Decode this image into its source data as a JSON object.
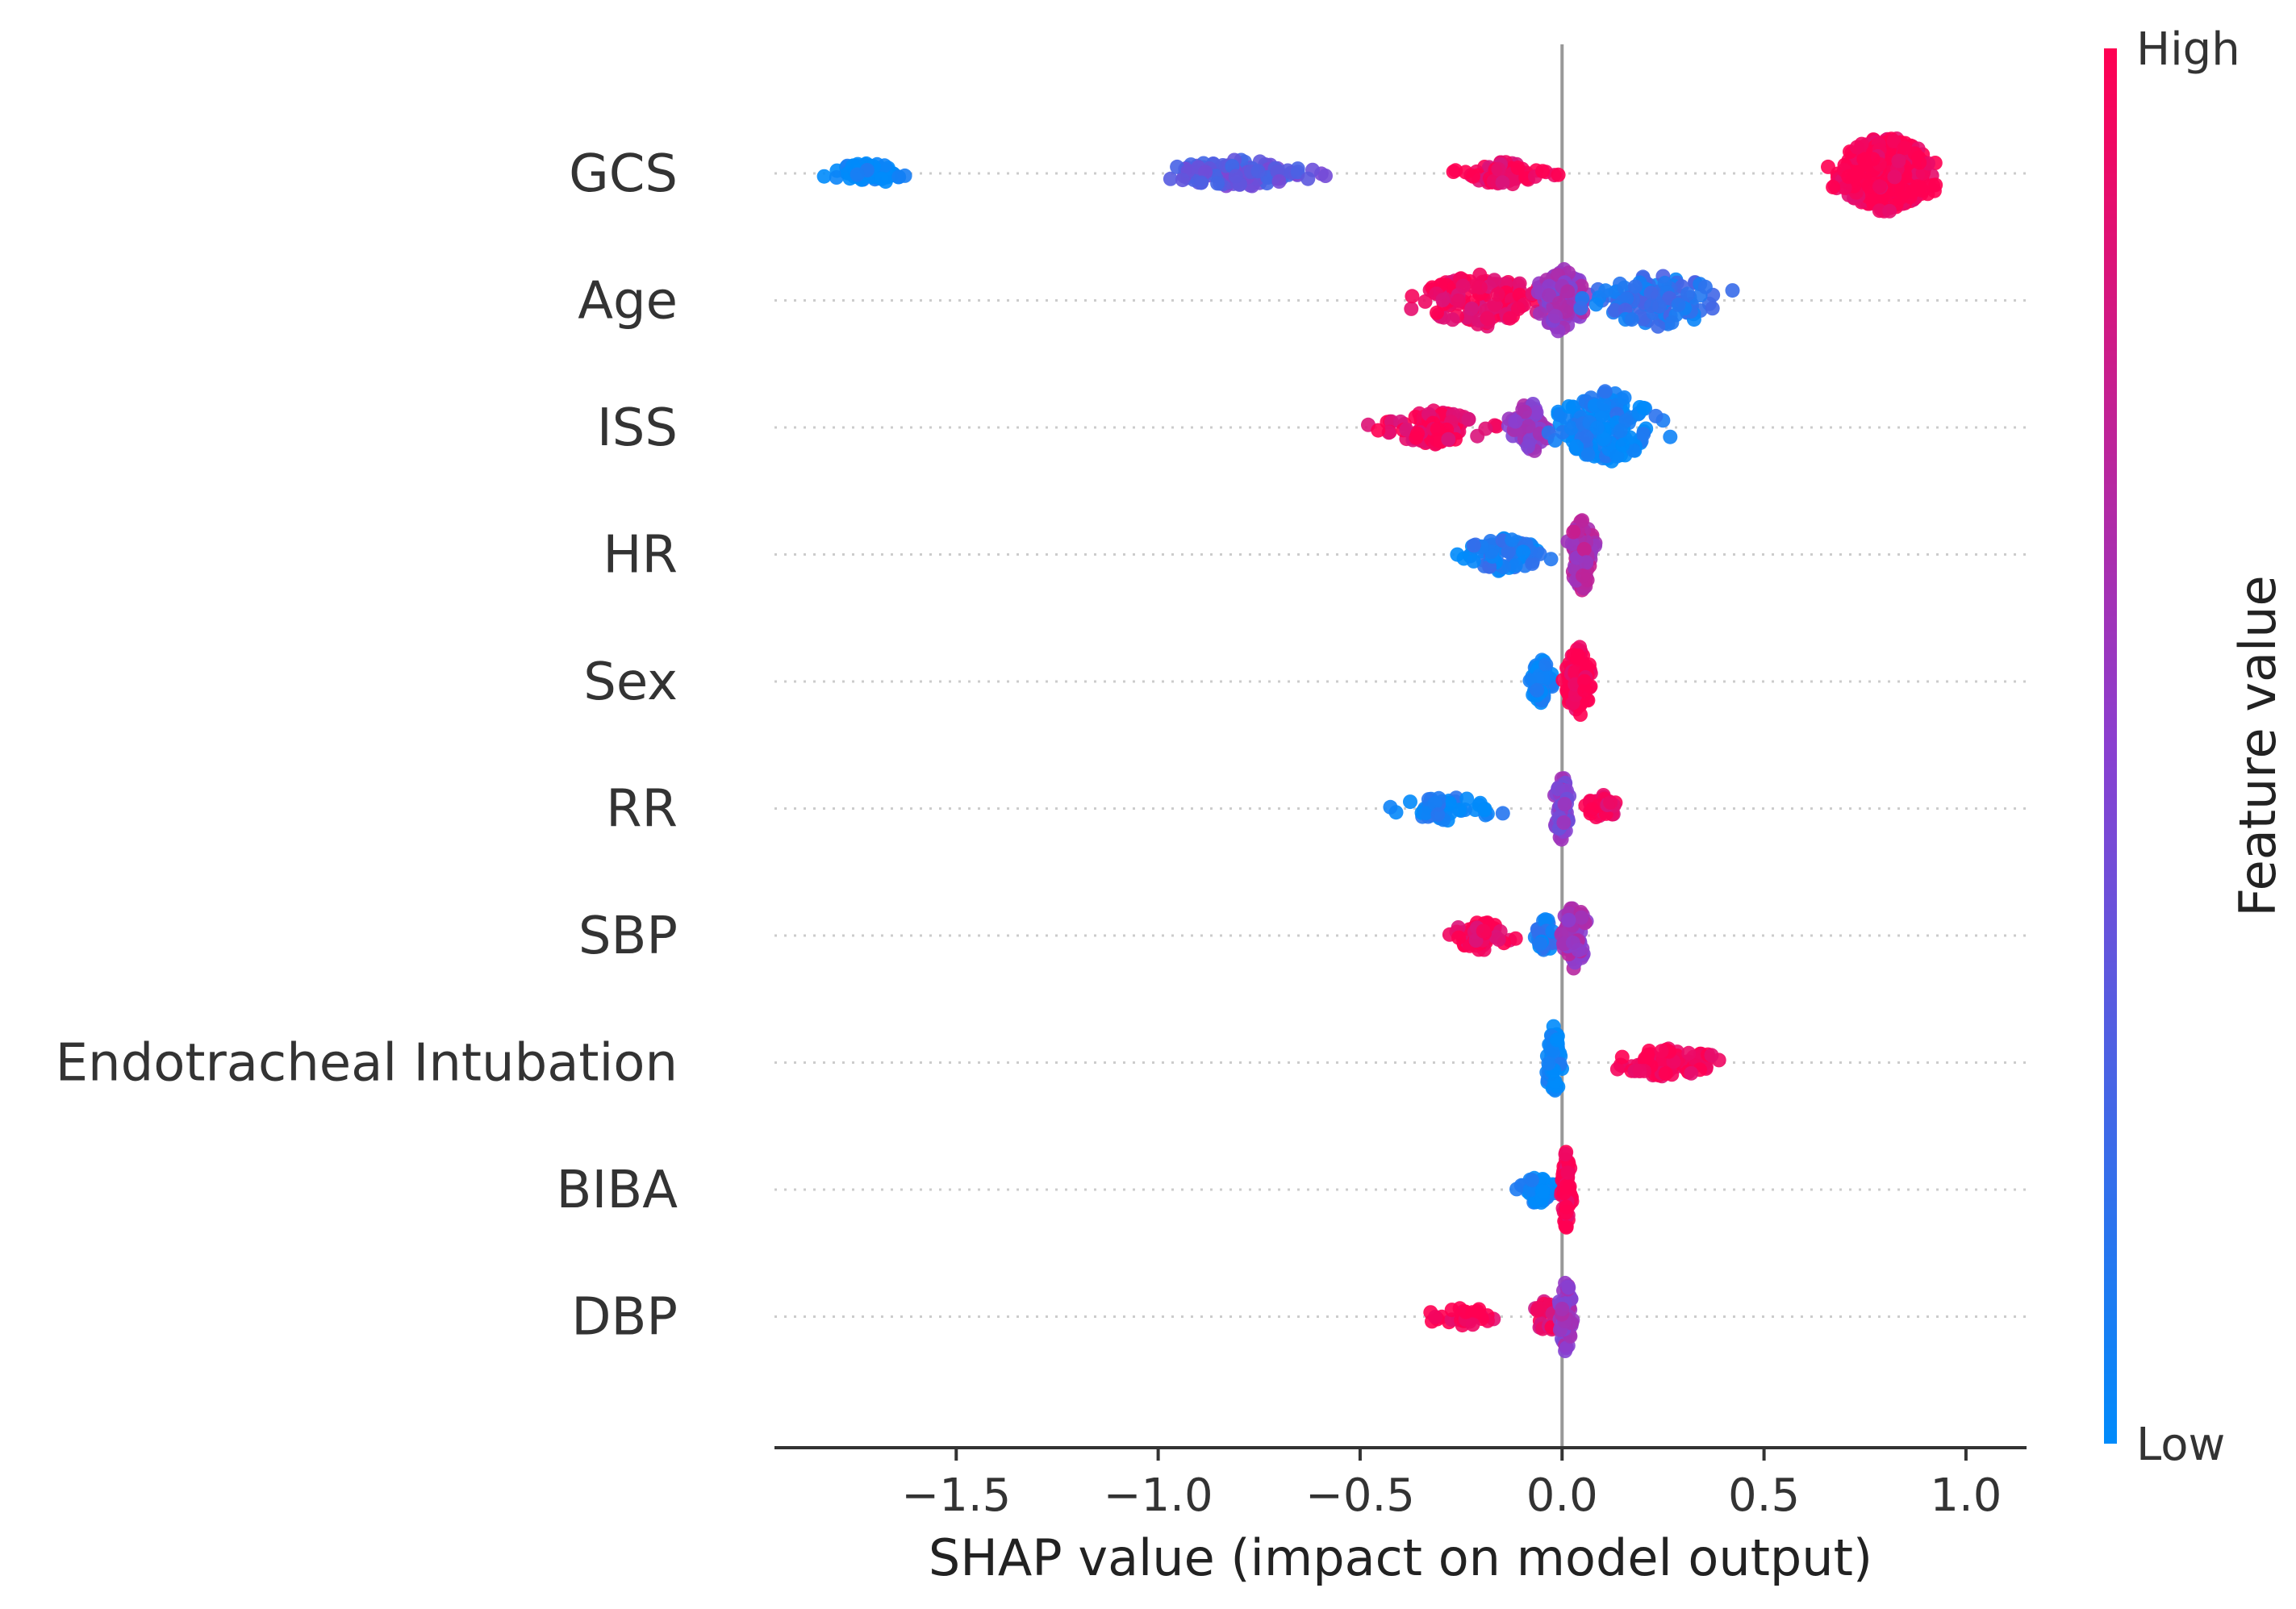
{
  "chart_data": {
    "type": "scatter",
    "subtype": "shap-beeswarm",
    "xlabel": "SHAP value (impact on model output)",
    "xlim": [
      -1.95,
      1.15
    ],
    "xticks": [
      -1.5,
      -1.0,
      -0.5,
      0.0,
      0.5,
      1.0
    ],
    "xtick_labels": [
      "−1.5",
      "−1.0",
      "−0.5",
      "0.0",
      "0.5",
      "1.0"
    ],
    "colorbar": {
      "label": "Feature value",
      "high_label": "High",
      "low_label": "Low",
      "high_color": "#ff0052",
      "low_color": "#008bfb"
    },
    "features": [
      {
        "name": "GCS",
        "clusters": [
          {
            "center": -1.72,
            "spread": 0.16,
            "height": 0.22,
            "count": 70,
            "value": 0.0
          },
          {
            "center": -0.8,
            "spread": 0.3,
            "height": 0.28,
            "count": 120,
            "value": 0.35
          },
          {
            "center": -0.14,
            "spread": 0.17,
            "height": 0.24,
            "count": 70,
            "value": 0.95
          },
          {
            "center": 0.8,
            "spread": 0.2,
            "height": 0.8,
            "count": 320,
            "value": 1.0
          }
        ]
      },
      {
        "name": "Age",
        "clusters": [
          {
            "center": -0.2,
            "spread": 0.24,
            "height": 0.55,
            "count": 140,
            "value": 0.95
          },
          {
            "center": 0.0,
            "spread": 0.1,
            "height": 0.7,
            "count": 90,
            "value": 0.55
          },
          {
            "center": 0.24,
            "spread": 0.26,
            "height": 0.55,
            "count": 130,
            "value": 0.15
          }
        ]
      },
      {
        "name": "ISS",
        "clusters": [
          {
            "center": -0.32,
            "spread": 0.2,
            "height": 0.35,
            "count": 90,
            "value": 0.95
          },
          {
            "center": -0.08,
            "spread": 0.08,
            "height": 0.55,
            "count": 60,
            "value": 0.55
          },
          {
            "center": 0.11,
            "spread": 0.2,
            "height": 0.75,
            "count": 150,
            "value": 0.05
          }
        ]
      },
      {
        "name": "HR",
        "clusters": [
          {
            "center": -0.15,
            "spread": 0.15,
            "height": 0.35,
            "count": 80,
            "value": 0.1
          },
          {
            "center": 0.05,
            "spread": 0.05,
            "height": 0.75,
            "count": 90,
            "value": 0.65
          }
        ]
      },
      {
        "name": "Sex",
        "clusters": [
          {
            "center": -0.05,
            "spread": 0.05,
            "height": 0.45,
            "count": 50,
            "value": 0.0
          },
          {
            "center": 0.04,
            "spread": 0.05,
            "height": 0.75,
            "count": 100,
            "value": 1.0
          }
        ]
      },
      {
        "name": "RR",
        "clusters": [
          {
            "center": -0.28,
            "spread": 0.2,
            "height": 0.25,
            "count": 50,
            "value": 0.05
          },
          {
            "center": 0.0,
            "spread": 0.03,
            "height": 0.7,
            "count": 70,
            "value": 0.5
          },
          {
            "center": 0.1,
            "spread": 0.06,
            "height": 0.28,
            "count": 40,
            "value": 0.9
          }
        ]
      },
      {
        "name": "SBP",
        "clusters": [
          {
            "center": -0.2,
            "spread": 0.12,
            "height": 0.3,
            "count": 55,
            "value": 0.95
          },
          {
            "center": -0.04,
            "spread": 0.04,
            "height": 0.35,
            "count": 25,
            "value": 0.1
          },
          {
            "center": 0.03,
            "spread": 0.05,
            "height": 0.7,
            "count": 80,
            "value": 0.6
          }
        ]
      },
      {
        "name": "Endotracheal Intubation",
        "clusters": [
          {
            "center": -0.02,
            "spread": 0.03,
            "height": 0.75,
            "count": 60,
            "value": 0.0
          },
          {
            "center": 0.26,
            "spread": 0.2,
            "height": 0.3,
            "count": 80,
            "value": 1.0
          }
        ]
      },
      {
        "name": "BIBA",
        "clusters": [
          {
            "center": -0.06,
            "spread": 0.06,
            "height": 0.3,
            "count": 40,
            "value": 0.0
          },
          {
            "center": 0.01,
            "spread": 0.02,
            "height": 0.8,
            "count": 70,
            "value": 1.0
          }
        ]
      },
      {
        "name": "DBP",
        "clusters": [
          {
            "center": -0.24,
            "spread": 0.16,
            "height": 0.18,
            "count": 30,
            "value": 1.0
          },
          {
            "center": -0.04,
            "spread": 0.05,
            "height": 0.35,
            "count": 25,
            "value": 0.9
          },
          {
            "center": 0.01,
            "spread": 0.03,
            "height": 0.75,
            "count": 60,
            "value": 0.55
          }
        ]
      }
    ]
  }
}
